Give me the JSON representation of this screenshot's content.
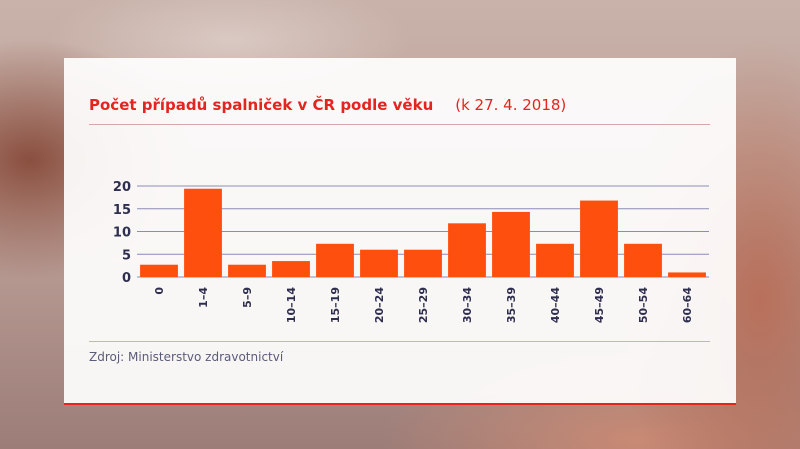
{
  "chart_data": {
    "type": "bar",
    "title": "Počet případů spalniček v ČR podle věku",
    "subtitle": "(k 27. 4. 2018)",
    "categories": [
      "0",
      "1–4",
      "5–9",
      "10–14",
      "15–19",
      "20–24",
      "25–29",
      "30–34",
      "35–39",
      "40–44",
      "45–49",
      "50–54",
      "60–64"
    ],
    "values": [
      2.7,
      19.4,
      2.7,
      3.5,
      7.3,
      6.0,
      6.0,
      11.8,
      14.3,
      7.3,
      16.8,
      7.3,
      1.0
    ],
    "yticks": [
      0,
      5,
      10,
      15,
      20
    ],
    "ylim": [
      0,
      20
    ],
    "grid": true,
    "bar_color": "#ff4f0f",
    "grid_color": "#8c8cb8"
  },
  "source": "Zdroj: Ministerstvo zdravotnictví"
}
